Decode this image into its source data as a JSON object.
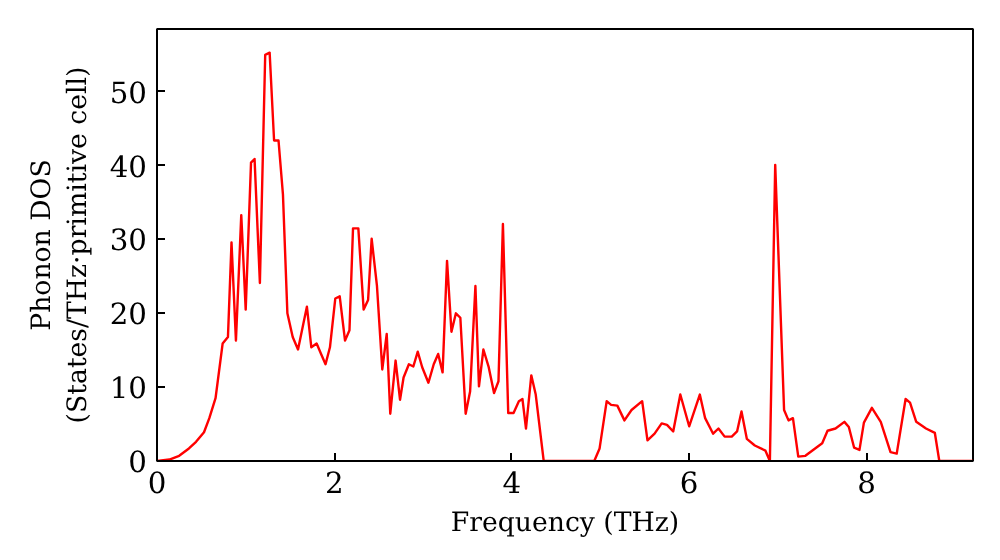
{
  "chart_data": {
    "type": "line",
    "xlabel": "Frequency (THz)",
    "ylabel": "Phonon DOS\n(States/THz·primitive cell)",
    "xlim": [
      0,
      9.2
    ],
    "ylim": [
      0,
      58.5
    ],
    "xticks": [
      0,
      2,
      4,
      6,
      8
    ],
    "yticks": [
      0,
      10,
      20,
      30,
      40,
      50
    ],
    "grid": false,
    "series": [
      {
        "color": "#ff0000",
        "x": [
          0,
          0.14,
          0.25,
          0.36,
          0.44,
          0.53,
          0.59,
          0.66,
          0.74,
          0.8,
          0.84,
          0.89,
          0.95,
          1.0,
          1.06,
          1.1,
          1.16,
          1.22,
          1.27,
          1.32,
          1.37,
          1.42,
          1.47,
          1.53,
          1.59,
          1.65,
          1.69,
          1.74,
          1.8,
          1.85,
          1.9,
          1.95,
          2.01,
          2.06,
          2.12,
          2.17,
          2.21,
          2.27,
          2.33,
          2.38,
          2.42,
          2.48,
          2.54,
          2.59,
          2.63,
          2.69,
          2.74,
          2.78,
          2.84,
          2.89,
          2.94,
          2.99,
          3.06,
          3.12,
          3.17,
          3.22,
          3.27,
          3.32,
          3.37,
          3.42,
          3.48,
          3.53,
          3.59,
          3.63,
          3.68,
          3.74,
          3.8,
          3.85,
          3.9,
          3.96,
          4.02,
          4.08,
          4.12,
          4.16,
          4.22,
          4.27,
          4.36,
          4.93,
          4.99,
          5.07,
          5.12,
          5.19,
          5.27,
          5.35,
          5.47,
          5.53,
          5.61,
          5.69,
          5.75,
          5.82,
          5.9,
          6.0,
          6.12,
          6.18,
          6.27,
          6.33,
          6.4,
          6.48,
          6.54,
          6.59,
          6.65,
          6.74,
          6.86,
          6.91,
          6.97,
          7.07,
          7.12,
          7.17,
          7.23,
          7.31,
          7.42,
          7.5,
          7.56,
          7.65,
          7.75,
          7.8,
          7.86,
          7.92,
          7.97,
          8.06,
          8.16,
          8.27,
          8.34,
          8.44,
          8.49,
          8.56,
          8.67,
          8.77,
          8.82,
          9.2
        ],
        "values": [
          0,
          0.2,
          0.7,
          1.7,
          2.6,
          3.9,
          5.8,
          8.5,
          15.9,
          16.8,
          29.6,
          16.3,
          33.3,
          20.5,
          40.4,
          40.9,
          24.1,
          55.0,
          55.3,
          43.4,
          43.4,
          36.1,
          20.0,
          16.8,
          15.1,
          18.6,
          20.9,
          15.4,
          15.9,
          14.5,
          13.1,
          15.4,
          22.0,
          22.3,
          16.3,
          17.7,
          31.5,
          31.5,
          20.5,
          21.8,
          30.1,
          23.7,
          12.4,
          17.2,
          6.4,
          13.6,
          8.3,
          11.3,
          13.1,
          12.8,
          14.8,
          12.7,
          10.6,
          13.1,
          14.5,
          12.0,
          27.1,
          17.5,
          20.0,
          19.4,
          6.4,
          9.4,
          23.7,
          10.1,
          15.1,
          12.7,
          9.2,
          10.8,
          32.1,
          6.5,
          6.5,
          8.1,
          8.4,
          4.4,
          11.6,
          9.0,
          0,
          0,
          1.7,
          8.1,
          7.6,
          7.5,
          5.5,
          6.9,
          8.1,
          2.8,
          3.7,
          5.1,
          4.9,
          4.0,
          9.0,
          4.7,
          9.0,
          5.8,
          3.7,
          4.4,
          3.3,
          3.3,
          4.0,
          6.7,
          3.0,
          2.1,
          1.4,
          0,
          40.1,
          6.9,
          5.5,
          5.8,
          0.6,
          0.7,
          1.7,
          2.4,
          4.1,
          4.4,
          5.3,
          4.6,
          1.8,
          1.5,
          5.2,
          7.2,
          5.3,
          1.2,
          1.0,
          8.4,
          7.9,
          5.3,
          4.4,
          3.8,
          0,
          0
        ]
      }
    ]
  }
}
